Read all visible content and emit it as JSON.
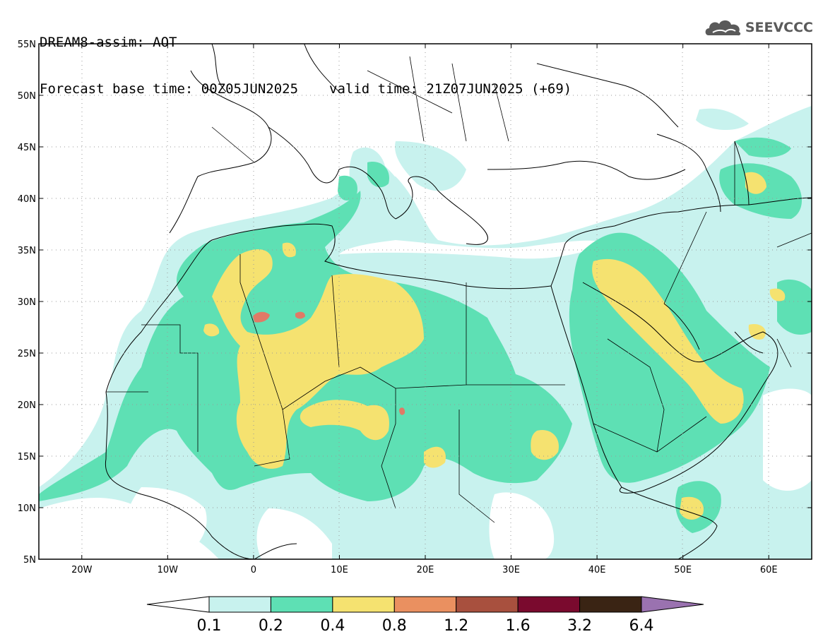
{
  "header": {
    "line1": "DREAM8-assim: AOT",
    "base_time": "Forecast base time: 00Z05JUN2025",
    "valid_time": "valid time: 21Z07JUN2025 (+69)"
  },
  "logo": {
    "icon": "cloud-logo-icon",
    "text": "SEEVCCC"
  },
  "map": {
    "lat_ticks": [
      "55N",
      "50N",
      "45N",
      "40N",
      "35N",
      "30N",
      "25N",
      "20N",
      "15N",
      "10N",
      "5N"
    ],
    "lat_values": [
      55,
      50,
      45,
      40,
      35,
      30,
      25,
      20,
      15,
      10,
      5
    ],
    "lon_ticks": [
      "20W",
      "10W",
      "0",
      "10E",
      "20E",
      "30E",
      "40E",
      "50E",
      "60E"
    ],
    "lon_values": [
      -20,
      -10,
      0,
      10,
      20,
      30,
      40,
      50,
      60
    ],
    "lon_range": [
      -25,
      65
    ],
    "lat_range": [
      5,
      55
    ],
    "field": "AOT"
  },
  "colorbar": {
    "labels": [
      "0.1",
      "0.2",
      "0.4",
      "0.8",
      "1.2",
      "1.6",
      "3.2",
      "6.4"
    ],
    "colors": [
      "#c8f2ee",
      "#5ee0b4",
      "#f5e270",
      "#ea9060",
      "#a8503e",
      "#7a0a2e",
      "#3a2414",
      "#9a72b0"
    ]
  },
  "colors": {
    "c01": "#c8f2ee",
    "c02": "#5ee0b4",
    "c04": "#f5e270",
    "c08": "#ea9060",
    "c12": "#e07a66"
  }
}
